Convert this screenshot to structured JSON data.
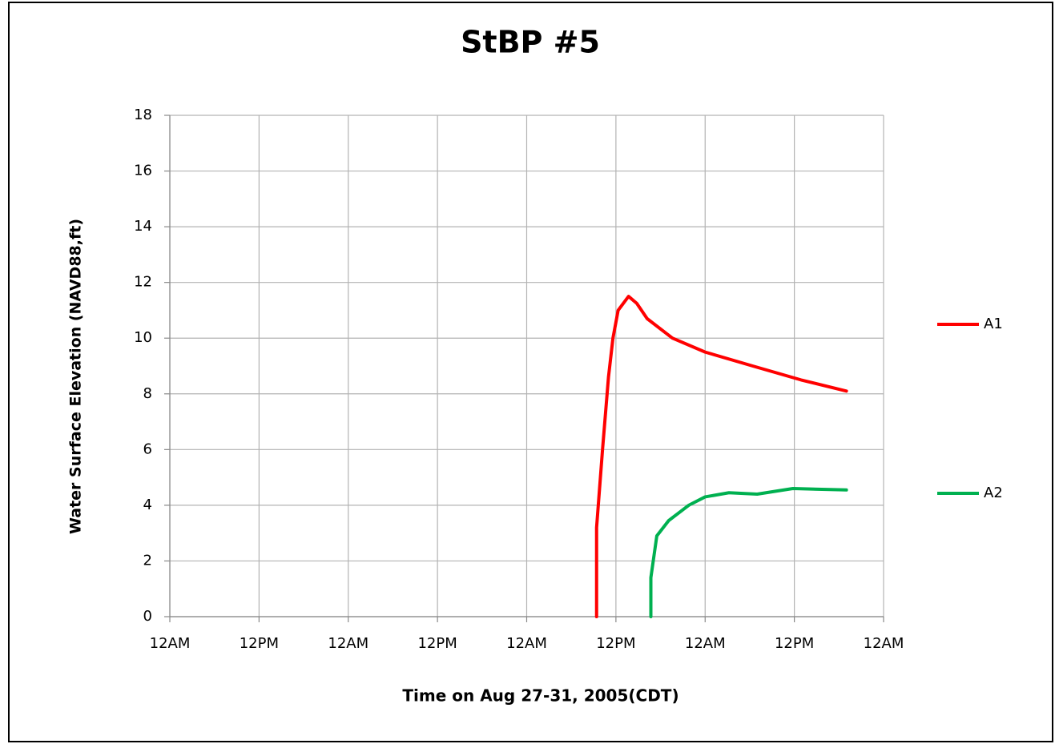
{
  "chart_data": {
    "type": "line",
    "title": "StBP #5",
    "xlabel": "Time  on Aug 27-31, 2005(CDT)",
    "ylabel": "Water Surface Elevation  (NAVD88,ft)",
    "xlim": [
      0,
      96
    ],
    "xticks": [
      {
        "value": 0,
        "label": "12AM"
      },
      {
        "value": 12,
        "label": "12PM"
      },
      {
        "value": 24,
        "label": "12AM"
      },
      {
        "value": 36,
        "label": "12PM"
      },
      {
        "value": 48,
        "label": "12AM"
      },
      {
        "value": 60,
        "label": "12PM"
      },
      {
        "value": 72,
        "label": "12AM"
      },
      {
        "value": 84,
        "label": "12PM"
      },
      {
        "value": 96,
        "label": "12AM"
      }
    ],
    "ylim": [
      0,
      18
    ],
    "yticks": [
      0,
      2,
      4,
      6,
      8,
      10,
      12,
      14,
      16,
      18
    ],
    "grid": true,
    "legend": "right",
    "series": [
      {
        "name": "A1",
        "color": "#ff0000",
        "x": [
          57.4,
          57.4,
          58.2,
          59.0,
          59.6,
          60.3,
          61.7,
          62.8,
          64.2,
          67.6,
          72.0,
          78.4,
          84.9,
          91.0
        ],
        "values": [
          0,
          3.2,
          6,
          8.6,
          10,
          11,
          11.5,
          11.25,
          10.7,
          10,
          9.5,
          9,
          8.5,
          8.1
        ]
      },
      {
        "name": "A2",
        "color": "#00b050",
        "x": [
          64.7,
          64.7,
          65.5,
          67.1,
          69.8,
          72.0,
          75.2,
          79.0,
          83.8,
          91.0
        ],
        "values": [
          0,
          1.4,
          2.9,
          3.45,
          4,
          4.3,
          4.45,
          4.4,
          4.6,
          4.55
        ]
      }
    ]
  }
}
